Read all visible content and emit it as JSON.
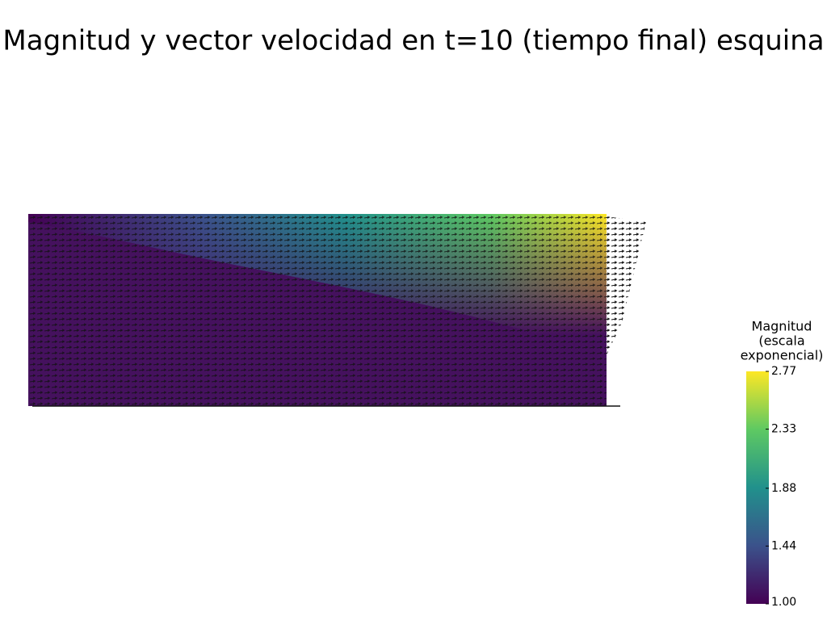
{
  "title": "Magnitud y vector velocidad en t=10 (tiempo final) esquina",
  "colorbar": {
    "title_lines": [
      "Magnitud",
      "(escala",
      "exponencial)"
    ],
    "range": [
      1,
      2.77
    ],
    "ticks": [
      {
        "value": 1,
        "label": "1.00"
      },
      1.44,
      1.88,
      2.33,
      2.77
    ]
  }
}
